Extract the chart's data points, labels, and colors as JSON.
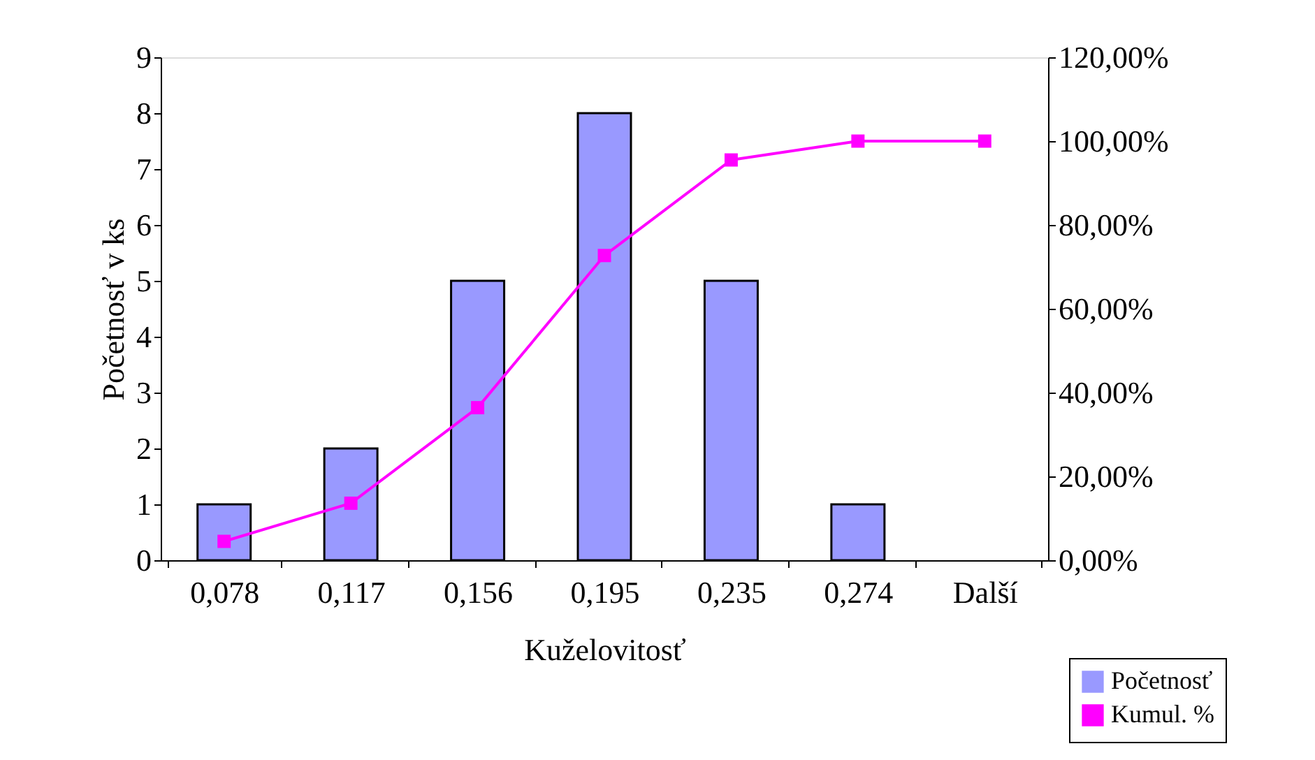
{
  "chart_data": {
    "type": "bar",
    "xlabel": "Kuželovitosť",
    "ylabel": "Početnosť v ks",
    "categories": [
      "0,078",
      "0,117",
      "0,156",
      "0,195",
      "0,235",
      "0,274",
      "Další"
    ],
    "series": [
      {
        "name": "Početnosť",
        "color": "#9999ff",
        "values": [
          1,
          2,
          5,
          8,
          5,
          1,
          0
        ]
      },
      {
        "name": "Kumul. %",
        "type": "line",
        "axis": "y2",
        "color": "#ff00ff",
        "marker": "square",
        "values": [
          4.5,
          13.6,
          36.4,
          72.7,
          95.5,
          100,
          100
        ]
      }
    ],
    "ylim": [
      0,
      9
    ],
    "yticks": [
      0,
      1,
      2,
      3,
      4,
      5,
      6,
      7,
      8,
      9
    ],
    "y2lim": [
      0,
      120
    ],
    "y2ticks": [
      {
        "value": 0,
        "label": "0,00%"
      },
      {
        "value": 20,
        "label": "20,00%"
      },
      {
        "value": 40,
        "label": "40,00%"
      },
      {
        "value": 60,
        "label": "60,00%"
      },
      {
        "value": 80,
        "label": "80,00%"
      },
      {
        "value": 100,
        "label": "100,00%"
      },
      {
        "value": 120,
        "label": "120,00%"
      }
    ],
    "grid": false,
    "legend": "bottom right"
  }
}
